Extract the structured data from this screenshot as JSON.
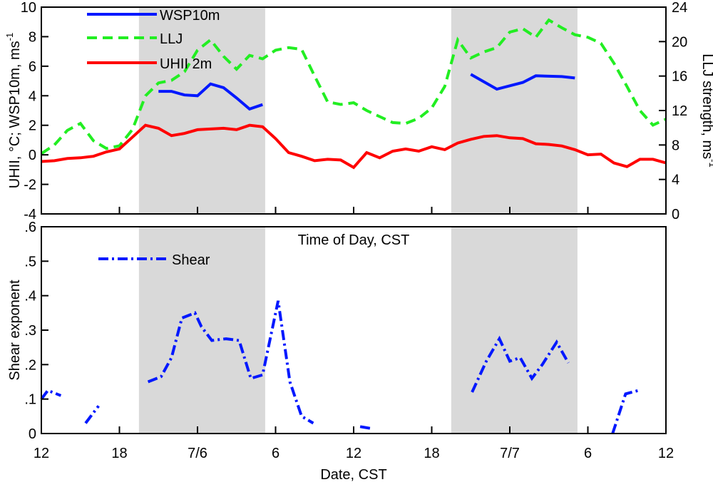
{
  "chart_data": [
    {
      "type": "line",
      "xlabel": "Time of Day, CST",
      "ylabel": "UHII, °C; WSP10m, ms",
      "ylabel_sup": "-1",
      "y2label": "LLJ strength, ms",
      "y2label_sup": "-1",
      "xlim": [
        0,
        48
      ],
      "ylim": [
        -4,
        10
      ],
      "y2lim": [
        0,
        24
      ],
      "yticks": [
        "-4",
        "-2",
        "0",
        "2",
        "4",
        "6",
        "8",
        "10"
      ],
      "y2ticks": [
        "0",
        "4",
        "8",
        "12",
        "16",
        "20",
        "24"
      ],
      "shaded_x_ranges": [
        [
          7.5,
          17.2
        ],
        [
          31.5,
          41.2
        ]
      ],
      "legend_placement": "top-left",
      "series": [
        {
          "name": "WSP10m",
          "axis": "left",
          "color": "#0018ff",
          "style": "solid",
          "x": [
            9,
            10,
            11,
            12,
            13,
            14,
            15,
            16,
            17
          ],
          "y": [
            4.3,
            4.3,
            4.05,
            4.0,
            4.8,
            4.55,
            3.85,
            3.1,
            3.4
          ],
          "segments2": {
            "x": [
              33,
              35,
              37,
              38,
              40,
              41
            ],
            "y": [
              5.45,
              4.45,
              4.9,
              5.35,
              5.3,
              5.2
            ]
          }
        },
        {
          "name": "LLJ",
          "axis": "right",
          "color": "#22ee22",
          "style": "dashed",
          "x": [
            0,
            1,
            2,
            3,
            4,
            5,
            6,
            7,
            8,
            9,
            10,
            11,
            12,
            13,
            14,
            15,
            16,
            17,
            18,
            19,
            20,
            21,
            22,
            23,
            24,
            25,
            26,
            27,
            28,
            29,
            30,
            31,
            32,
            33,
            34,
            35,
            36,
            37,
            38,
            39,
            40,
            41,
            42,
            43,
            44,
            45,
            46,
            47,
            48
          ],
          "y": [
            7.0,
            8.0,
            9.7,
            10.5,
            8.5,
            7.6,
            7.9,
            9.8,
            13.7,
            15.2,
            15.5,
            16.5,
            19.0,
            20.2,
            18.3,
            16.8,
            18.4,
            18.0,
            19.0,
            19.3,
            19.1,
            16.0,
            13.0,
            12.7,
            12.9,
            12.0,
            11.3,
            10.6,
            10.5,
            11.1,
            12.3,
            14.8,
            20.2,
            18.1,
            18.8,
            19.3,
            21.1,
            21.5,
            20.5,
            22.5,
            21.6,
            20.8,
            20.5,
            19.8,
            17.5,
            14.8,
            12.0,
            10.3,
            11.0
          ]
        },
        {
          "name": "UHII 2m",
          "axis": "left",
          "color": "#ff0000",
          "style": "solid",
          "x": [
            0,
            1,
            2,
            3,
            4,
            5,
            6,
            7,
            8,
            9,
            10,
            11,
            12,
            13,
            14,
            15,
            16,
            17,
            18,
            19,
            20,
            21,
            22,
            23,
            24,
            25,
            26,
            27,
            28,
            29,
            30,
            31,
            32,
            33,
            34,
            35,
            36,
            37,
            38,
            39,
            40,
            41,
            42,
            43,
            44,
            45,
            46,
            47,
            48
          ],
          "y": [
            -0.45,
            -0.4,
            -0.25,
            -0.2,
            -0.1,
            0.2,
            0.4,
            1.2,
            2.0,
            1.8,
            1.3,
            1.45,
            1.7,
            1.75,
            1.8,
            1.7,
            2.0,
            1.9,
            1.1,
            0.15,
            -0.1,
            -0.4,
            -0.3,
            -0.35,
            -0.85,
            0.15,
            -0.2,
            0.25,
            0.4,
            0.25,
            0.55,
            0.35,
            0.8,
            1.05,
            1.25,
            1.3,
            1.15,
            1.1,
            0.75,
            0.7,
            0.6,
            0.35,
            0.0,
            0.05,
            -0.55,
            -0.8,
            -0.3,
            -0.3,
            -0.55
          ]
        }
      ]
    },
    {
      "type": "line",
      "xlabel": "Date, CST",
      "ylabel": "Shear exponent",
      "xlim": [
        0,
        48
      ],
      "ylim": [
        0,
        0.6
      ],
      "yticks": [
        "0",
        ".1",
        ".2",
        ".3",
        ".4",
        ".5",
        ".6"
      ],
      "xticks": [
        {
          "x": 0,
          "label": "12"
        },
        {
          "x": 6,
          "label": "18"
        },
        {
          "x": 12,
          "label": "7/6"
        },
        {
          "x": 18,
          "label": "6"
        },
        {
          "x": 24,
          "label": "12"
        },
        {
          "x": 30,
          "label": "18"
        },
        {
          "x": 36,
          "label": "7/7"
        },
        {
          "x": 42,
          "label": "6"
        },
        {
          "x": 48,
          "label": "12"
        }
      ],
      "shaded_x_ranges": [
        [
          7.5,
          17.2
        ],
        [
          31.5,
          41.2
        ]
      ],
      "legend_placement": "top-left",
      "series": [
        {
          "name": "Shear",
          "color": "#0018ff",
          "style": "dash-dot",
          "segments": [
            {
              "x": [
                0,
                0.5,
                1.5
              ],
              "y": [
                0.1,
                0.125,
                0.11
              ]
            },
            {
              "x": [
                3.4,
                4.4
              ],
              "y": [
                0.03,
                0.08
              ]
            },
            {
              "x": [
                8.2,
                9.2,
                10,
                10.8,
                11.8,
                12.3,
                13.1,
                14.2,
                15.2,
                16.1,
                17.0,
                18.2,
                19.1,
                20.0,
                20.9
              ],
              "y": [
                0.15,
                0.165,
                0.22,
                0.335,
                0.35,
                0.31,
                0.27,
                0.275,
                0.27,
                0.16,
                0.17,
                0.385,
                0.15,
                0.05,
                0.03
              ]
            },
            {
              "x": [
                24.5,
                25.3
              ],
              "y": [
                0.02,
                0.015
              ]
            },
            {
              "x": [
                33.1,
                34.2,
                35.2,
                36.0,
                36.8,
                37.7,
                38.5,
                39.6,
                40.5
              ],
              "y": [
                0.12,
                0.21,
                0.275,
                0.21,
                0.22,
                0.16,
                0.2,
                0.265,
                0.205
              ]
            },
            {
              "x": [
                43.9,
                44.9,
                45.9
              ],
              "y": [
                0.0,
                0.115,
                0.125
              ]
            }
          ]
        }
      ]
    }
  ]
}
